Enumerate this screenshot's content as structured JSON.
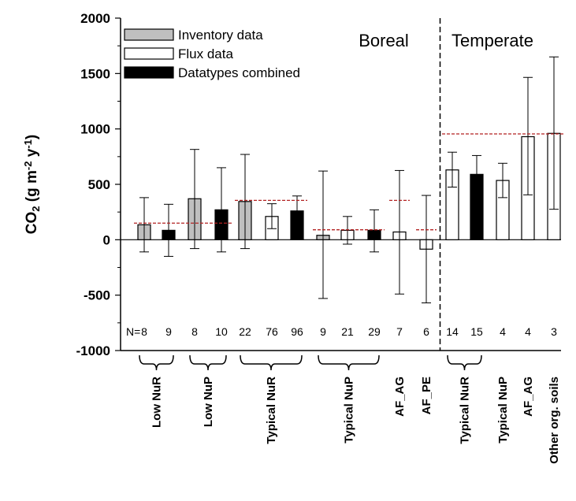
{
  "chart_data": {
    "type": "bar",
    "ylabel": "CO2 (g m-2 y-1)",
    "ylabel_parts": {
      "base": "CO",
      "sub": "2",
      "open": " (g m",
      "exp1": "-2",
      "mid": " y",
      "exp2": "-1",
      "close": ")"
    },
    "ylim": [
      -1000,
      2000
    ],
    "y_ticks": [
      -1000,
      -500,
      0,
      500,
      1000,
      1500,
      2000
    ],
    "grid": false,
    "regions": [
      "Boreal",
      "Temperate"
    ],
    "legend": {
      "placement": "top-left",
      "entries": [
        {
          "label": "Inventory data",
          "fill": "#bfbfbf"
        },
        {
          "label": "Flux data",
          "fill": "#ffffff"
        },
        {
          "label": "Datatypes combined",
          "fill": "#000000"
        }
      ]
    },
    "n_prefix": "N=",
    "bars": [
      {
        "type": "inventory",
        "value": 135,
        "err_low": -110,
        "err_high": 380,
        "n": "8"
      },
      {
        "type": "combined",
        "value": 85,
        "err_low": -150,
        "err_high": 320,
        "n": "9"
      },
      {
        "type": "inventory",
        "value": 370,
        "err_low": -80,
        "err_high": 815,
        "n": "8"
      },
      {
        "type": "combined",
        "value": 270,
        "err_low": -110,
        "err_high": 650,
        "n": "10"
      },
      {
        "type": "inventory",
        "value": 345,
        "err_low": -80,
        "err_high": 770,
        "n": "22"
      },
      {
        "type": "flux",
        "value": 210,
        "err_low": 100,
        "err_high": 325,
        "n": "76"
      },
      {
        "type": "combined",
        "value": 260,
        "err_low": 140,
        "err_high": 395,
        "n": "96"
      },
      {
        "type": "inventory",
        "value": 40,
        "err_low": -530,
        "err_high": 620,
        "n": "9"
      },
      {
        "type": "flux",
        "value": 85,
        "err_low": -40,
        "err_high": 210,
        "n": "21"
      },
      {
        "type": "combined",
        "value": 85,
        "err_low": -110,
        "err_high": 270,
        "n": "29"
      },
      {
        "type": "flux",
        "value": 70,
        "err_low": -490,
        "err_high": 625,
        "n": "7"
      },
      {
        "type": "flux",
        "value": -85,
        "err_low": -570,
        "err_high": 400,
        "n": "6"
      },
      {
        "type": "flux",
        "value": 630,
        "err_low": 475,
        "err_high": 790,
        "n": "14"
      },
      {
        "type": "combined",
        "value": 590,
        "err_low": 430,
        "err_high": 760,
        "n": "15"
      },
      {
        "type": "flux",
        "value": 535,
        "err_low": 380,
        "err_high": 690,
        "n": "4"
      },
      {
        "type": "flux",
        "value": 930,
        "err_low": 405,
        "err_high": 1465,
        "n": "4"
      },
      {
        "type": "flux",
        "value": 960,
        "err_low": 275,
        "err_high": 1650,
        "n": "3"
      }
    ],
    "reference_lines": [
      {
        "value": 150,
        "from_bar": 0,
        "to_bar": 3
      },
      {
        "value": 355,
        "from_bar": 4,
        "to_bar": 6
      },
      {
        "value": 90,
        "from_bar": 7,
        "to_bar": 9
      },
      {
        "value": 355,
        "from_bar": 10,
        "to_bar": 10
      },
      {
        "value": 90,
        "from_bar": 11,
        "to_bar": 11
      },
      {
        "value": 955,
        "from_bar": 12,
        "to_bar": 16
      }
    ],
    "groups": [
      {
        "label": "Low NuR",
        "from_bar": 0,
        "to_bar": 1,
        "bracket": true
      },
      {
        "label": "Low NuP",
        "from_bar": 2,
        "to_bar": 3,
        "bracket": true
      },
      {
        "label": "Typical NuR",
        "from_bar": 4,
        "to_bar": 6,
        "bracket": true
      },
      {
        "label": "Typical NuP",
        "from_bar": 7,
        "to_bar": 9,
        "bracket": true
      },
      {
        "label": "AF_AG",
        "from_bar": 10,
        "to_bar": 10,
        "bracket": false
      },
      {
        "label": "AF_PE",
        "from_bar": 11,
        "to_bar": 11,
        "bracket": false
      },
      {
        "label": "Typical NuR",
        "from_bar": 12,
        "to_bar": 13,
        "bracket": true
      },
      {
        "label": "Typical NuP",
        "from_bar": 14,
        "to_bar": 14,
        "bracket": false
      },
      {
        "label": "AF_AG",
        "from_bar": 15,
        "to_bar": 15,
        "bracket": false
      },
      {
        "label": "Other org. soils",
        "from_bar": 16,
        "to_bar": 16,
        "bracket": false
      }
    ],
    "divider_after_bar": 11,
    "colors": {
      "reference_line": "#b22222",
      "axis": "#000000"
    }
  }
}
